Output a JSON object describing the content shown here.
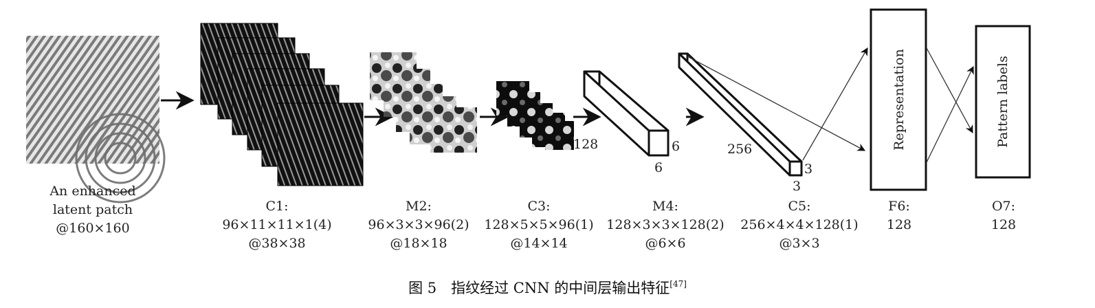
{
  "input": {
    "lines": [
      "An enhanced",
      "latent patch",
      "@160×160"
    ]
  },
  "layers": [
    {
      "id": "c1",
      "name": "C1:",
      "params": "96×11×11×1(4)",
      "size": "@38×38"
    },
    {
      "id": "m2",
      "name": "M2:",
      "params": "96×3×3×96(2)",
      "size": "@18×18"
    },
    {
      "id": "c3",
      "name": "C3:",
      "params": "128×5×5×96(1)",
      "size": "@14×14"
    },
    {
      "id": "m4",
      "name": "M4:",
      "params": "128×3×3×128(2)",
      "size": "@6×6"
    },
    {
      "id": "c5",
      "name": "C5:",
      "params": "256×4×4×128(1)",
      "size": "@3×3"
    },
    {
      "id": "f6",
      "name": "F6:",
      "params": "128"
    },
    {
      "id": "o7",
      "name": "O7:",
      "params": "128"
    }
  ],
  "dims": {
    "c3_depth": "128",
    "m4_w": "6",
    "m4_h": "6",
    "c5_depth": "256",
    "c5_w": "3",
    "c5_h": "3"
  },
  "boxes": {
    "f6_label": "Representation",
    "o7_label": "Pattern labels"
  },
  "caption": {
    "text": "图 5　指纹经过 CNN 的中间层输出特征",
    "ref": "[47]"
  }
}
